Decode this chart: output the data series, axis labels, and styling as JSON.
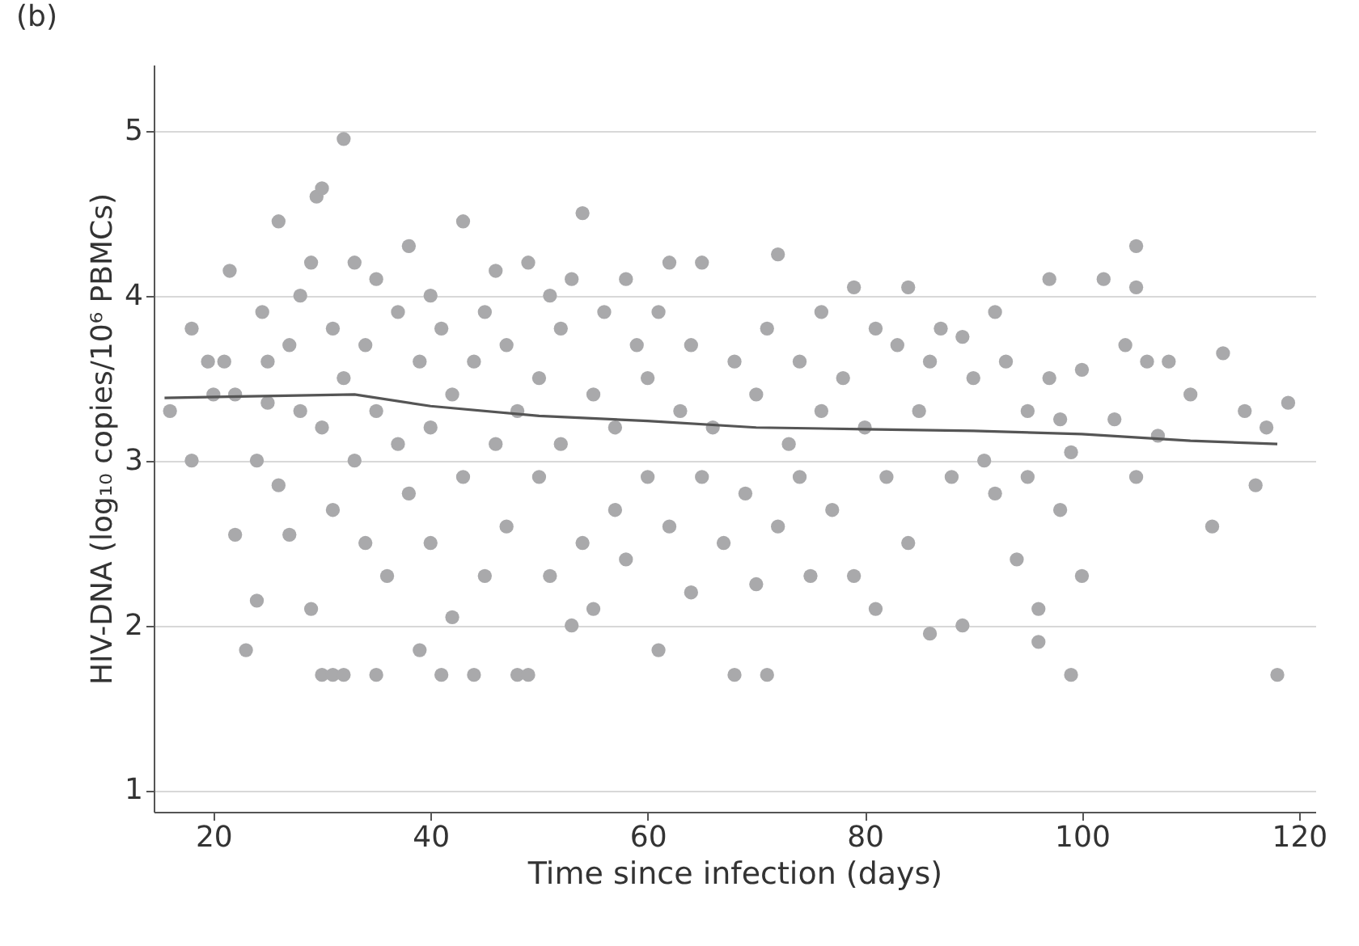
{
  "chart_data": {
    "type": "scatter",
    "xlabel": "Time since infection (days)",
    "ylabel": "HIV-DNA (log₁₀ copies/10⁶ PBMCs)",
    "annotations": [
      "(b)"
    ],
    "xlim": [
      14.5,
      121.5
    ],
    "xticks": [
      20,
      40,
      60,
      80,
      100,
      120
    ],
    "ylim": [
      0.87,
      5.4
    ],
    "yticks": [
      1,
      2,
      3,
      4,
      5
    ],
    "grid": "y",
    "series": [
      {
        "type": "scatter",
        "color": "#a9a9ab",
        "marker": "circle",
        "x": [
          16,
          18,
          18,
          19.5,
          20,
          21,
          21.5,
          22,
          22,
          23,
          24,
          24,
          24.5,
          25,
          25,
          26,
          26,
          27,
          27,
          28,
          28,
          29,
          29,
          29.5,
          30,
          30,
          31,
          32,
          30,
          31,
          31,
          32,
          32,
          33,
          33,
          34,
          34,
          35,
          35,
          35,
          36,
          37,
          37,
          38,
          38,
          39,
          39,
          40,
          40,
          40,
          41,
          41,
          42,
          42,
          43,
          43,
          44,
          44,
          45,
          45,
          46,
          46,
          47,
          47,
          48,
          48,
          49,
          49,
          50,
          50,
          51,
          51,
          52,
          52,
          53,
          53,
          54,
          54,
          55,
          55,
          56,
          57,
          57,
          58,
          58,
          59,
          60,
          60,
          61,
          61,
          62,
          62,
          63,
          64,
          64,
          65,
          65,
          66,
          67,
          68,
          68,
          69,
          70,
          70,
          71,
          71,
          72,
          72,
          73,
          74,
          74,
          75,
          76,
          76,
          77,
          78,
          79,
          79,
          80,
          81,
          81,
          82,
          83,
          84,
          84,
          85,
          86,
          86,
          87,
          88,
          89,
          89,
          90,
          91,
          92,
          92,
          93,
          94,
          95,
          95,
          96,
          96,
          97,
          97,
          98,
          98,
          99,
          99,
          100,
          100,
          102,
          103,
          104,
          105,
          105,
          105,
          106,
          107,
          108,
          110,
          112,
          113,
          115,
          116,
          117,
          118,
          119
        ],
        "values": [
          3.3,
          3.8,
          3.0,
          3.6,
          3.4,
          3.6,
          4.15,
          3.4,
          2.55,
          1.85,
          2.15,
          3.0,
          3.9,
          3.6,
          3.35,
          4.45,
          2.85,
          2.55,
          3.7,
          4.0,
          3.3,
          2.1,
          4.2,
          4.6,
          4.65,
          1.7,
          1.7,
          1.7,
          3.2,
          3.8,
          2.7,
          4.95,
          3.5,
          4.2,
          3.0,
          3.7,
          2.5,
          1.7,
          4.1,
          3.3,
          2.3,
          3.9,
          3.1,
          4.3,
          2.8,
          3.6,
          1.85,
          3.2,
          4.0,
          2.5,
          3.8,
          1.7,
          2.05,
          3.4,
          4.45,
          2.9,
          3.6,
          1.7,
          3.9,
          2.3,
          3.1,
          4.15,
          2.6,
          3.7,
          1.7,
          3.3,
          1.7,
          4.2,
          2.9,
          3.5,
          2.3,
          4.0,
          3.1,
          3.8,
          2.0,
          4.1,
          2.5,
          4.5,
          3.4,
          2.1,
          3.9,
          2.7,
          3.2,
          4.1,
          2.4,
          3.7,
          2.9,
          3.5,
          1.85,
          3.9,
          2.6,
          4.2,
          3.3,
          2.2,
          3.7,
          4.2,
          2.9,
          3.2,
          2.5,
          1.7,
          3.6,
          2.8,
          2.25,
          3.4,
          3.8,
          1.7,
          2.6,
          4.25,
          3.1,
          2.9,
          3.6,
          2.3,
          3.3,
          3.9,
          2.7,
          3.5,
          2.3,
          4.05,
          3.2,
          2.1,
          3.8,
          2.9,
          3.7,
          4.05,
          2.5,
          3.3,
          1.95,
          3.6,
          3.8,
          2.9,
          3.75,
          2.0,
          3.5,
          3.0,
          3.9,
          2.8,
          3.6,
          2.4,
          3.3,
          2.9,
          2.1,
          1.9,
          4.1,
          3.5,
          2.7,
          3.25,
          1.7,
          3.05,
          2.3,
          3.55,
          4.1,
          3.25,
          3.7,
          4.3,
          4.05,
          2.9,
          3.6,
          3.15,
          3.6,
          3.4,
          2.6,
          3.65,
          3.3,
          2.85,
          3.2,
          1.7,
          3.35
        ]
      },
      {
        "type": "line",
        "color": "#555555",
        "x": [
          15.5,
          33,
          40,
          50,
          60,
          70,
          80,
          90,
          100,
          110,
          118
        ],
        "values": [
          3.38,
          3.4,
          3.33,
          3.27,
          3.24,
          3.2,
          3.19,
          3.18,
          3.16,
          3.12,
          3.1
        ]
      }
    ]
  }
}
